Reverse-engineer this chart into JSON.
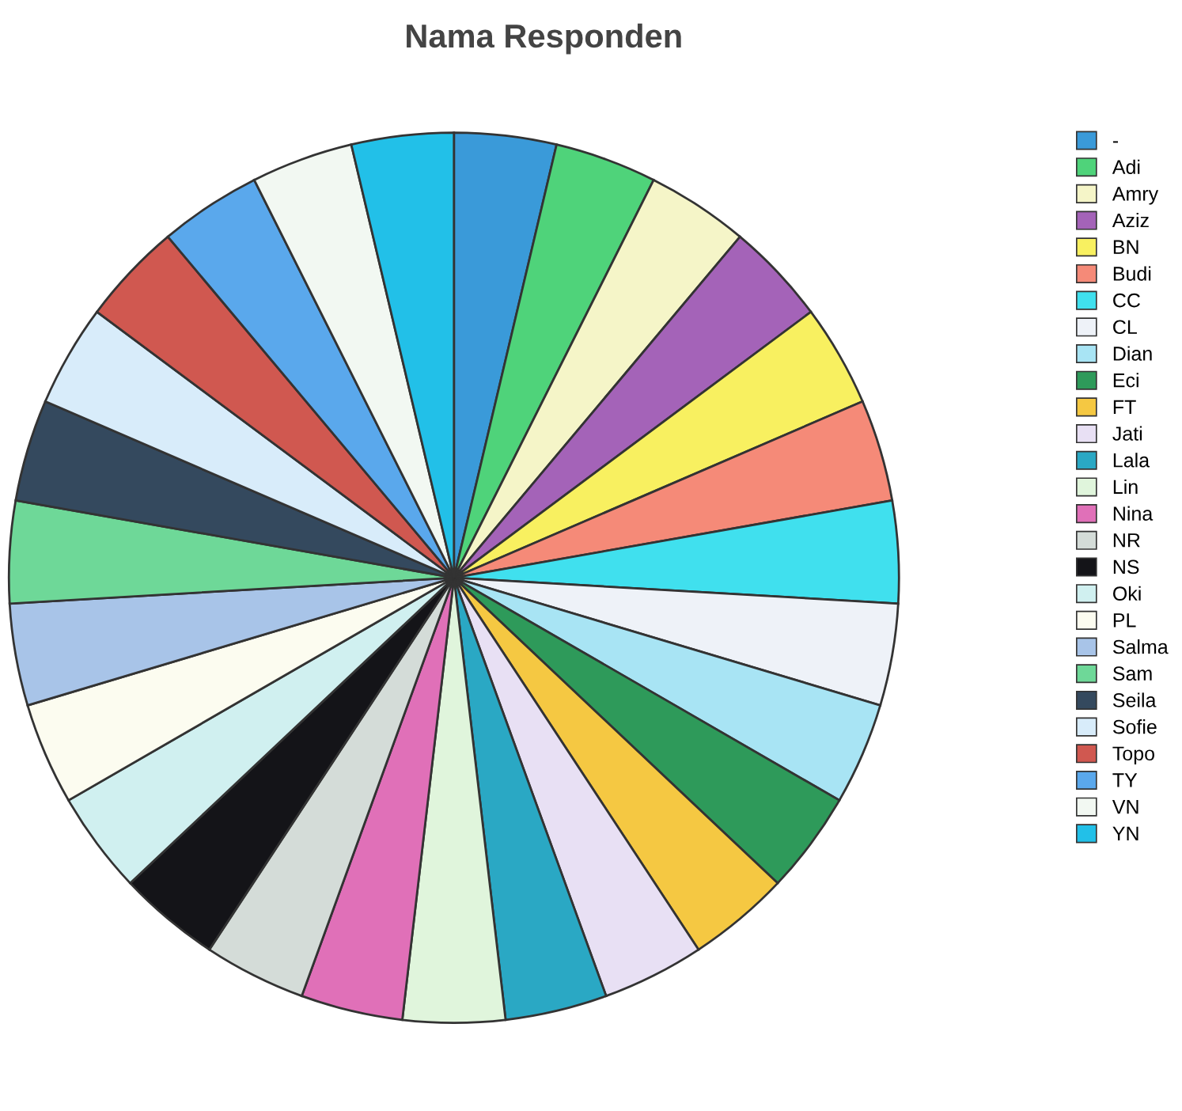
{
  "chart_data": {
    "type": "pie",
    "title": "Nama Responden",
    "categories": [
      "-",
      "Adi",
      "Amry",
      "Aziz",
      "BN",
      "Budi",
      "CC",
      "CL",
      "Dian",
      "Eci",
      "FT",
      "Jati",
      "Lala",
      "Lin",
      "Nina",
      "NR",
      "NS",
      "Oki",
      "PL",
      "Salma",
      "Sam",
      "Seila",
      "Sofie",
      "Topo",
      "TY",
      "VN",
      "YN"
    ],
    "values": [
      3.7037,
      3.7037,
      3.7037,
      3.7037,
      3.7037,
      3.7037,
      3.7037,
      3.7037,
      3.7037,
      3.7037,
      3.7037,
      3.7037,
      3.7037,
      3.7037,
      3.7037,
      3.7037,
      3.7037,
      3.7037,
      3.7037,
      3.7037,
      3.7037,
      3.7037,
      3.7037,
      3.7037,
      3.7037,
      3.7037,
      3.7037
    ],
    "colors": [
      "#3a9ad9",
      "#4fd37a",
      "#f5f5c8",
      "#a463b8",
      "#f8f060",
      "#f58a78",
      "#40e0ee",
      "#eef2f8",
      "#a8e4f4",
      "#2e9a5a",
      "#f5c842",
      "#e8e0f4",
      "#2aa8c4",
      "#e0f5dc",
      "#e070b8",
      "#d4dcd8",
      "#141418",
      "#d0f0f0",
      "#fcfcf0",
      "#a8c4e8",
      "#6ed898",
      "#34495e",
      "#d8ecfa",
      "#d05850",
      "#5aa8ec",
      "#f2f8f2",
      "#22c0e8"
    ],
    "legend": "right"
  }
}
